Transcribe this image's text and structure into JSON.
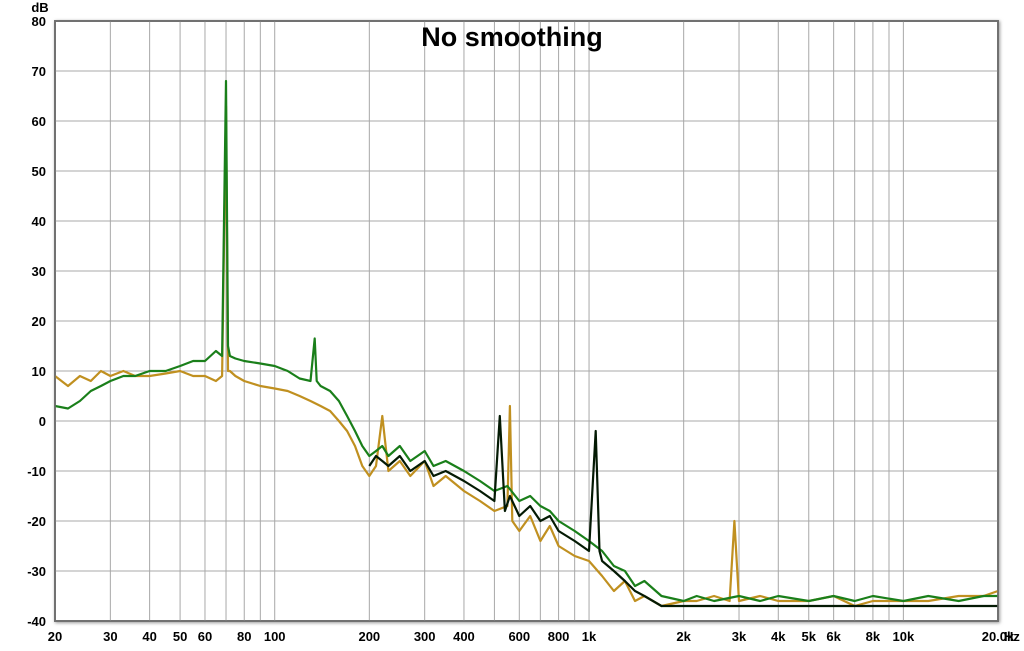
{
  "chart_data": {
    "type": "line",
    "title": "No smoothing",
    "y_unit": "dB",
    "x_unit": "Hz",
    "x_scale": "log",
    "xlim": [
      20,
      20000
    ],
    "ylim": [
      -40,
      80
    ],
    "grid": true,
    "y_ticks": [
      80,
      70,
      60,
      50,
      40,
      30,
      20,
      10,
      0,
      -10,
      -20,
      -30,
      -40
    ],
    "x_ticks": [
      {
        "v": 20,
        "label": "20"
      },
      {
        "v": 30,
        "label": "30"
      },
      {
        "v": 40,
        "label": "40"
      },
      {
        "v": 50,
        "label": "50"
      },
      {
        "v": 60,
        "label": "60"
      },
      {
        "v": 80,
        "label": "80"
      },
      {
        "v": 100,
        "label": "100"
      },
      {
        "v": 200,
        "label": "200"
      },
      {
        "v": 300,
        "label": "300"
      },
      {
        "v": 400,
        "label": "400"
      },
      {
        "v": 600,
        "label": "600"
      },
      {
        "v": 800,
        "label": "800"
      },
      {
        "v": 1000,
        "label": "1k"
      },
      {
        "v": 2000,
        "label": "2k"
      },
      {
        "v": 3000,
        "label": "3k"
      },
      {
        "v": 4000,
        "label": "4k"
      },
      {
        "v": 5000,
        "label": "5k"
      },
      {
        "v": 6000,
        "label": "6k"
      },
      {
        "v": 8000,
        "label": "8k"
      },
      {
        "v": 10000,
        "label": "10k"
      },
      {
        "v": 20000,
        "label": "20.0k"
      }
    ],
    "series": [
      {
        "color": "#c09020",
        "points": [
          [
            20,
            9
          ],
          [
            22,
            7
          ],
          [
            24,
            9
          ],
          [
            26,
            8
          ],
          [
            28,
            10
          ],
          [
            30,
            9
          ],
          [
            33,
            10
          ],
          [
            36,
            9
          ],
          [
            40,
            9
          ],
          [
            45,
            9.5
          ],
          [
            50,
            10
          ],
          [
            55,
            9
          ],
          [
            60,
            9
          ],
          [
            65,
            8
          ],
          [
            68,
            9
          ],
          [
            70,
            63
          ],
          [
            71,
            10
          ],
          [
            72,
            10
          ],
          [
            75,
            9
          ],
          [
            80,
            8
          ],
          [
            90,
            7
          ],
          [
            100,
            6.5
          ],
          [
            110,
            6
          ],
          [
            120,
            5
          ],
          [
            130,
            4
          ],
          [
            140,
            3
          ],
          [
            150,
            2
          ],
          [
            160,
            0
          ],
          [
            170,
            -2
          ],
          [
            180,
            -5
          ],
          [
            190,
            -9
          ],
          [
            200,
            -11
          ],
          [
            210,
            -9
          ],
          [
            220,
            1
          ],
          [
            230,
            -10
          ],
          [
            250,
            -8
          ],
          [
            270,
            -11
          ],
          [
            300,
            -8
          ],
          [
            320,
            -13
          ],
          [
            350,
            -11
          ],
          [
            400,
            -14
          ],
          [
            450,
            -16
          ],
          [
            500,
            -18
          ],
          [
            550,
            -17
          ],
          [
            560,
            3
          ],
          [
            570,
            -20
          ],
          [
            600,
            -22
          ],
          [
            650,
            -19
          ],
          [
            700,
            -24
          ],
          [
            750,
            -21
          ],
          [
            800,
            -25
          ],
          [
            900,
            -27
          ],
          [
            1000,
            -28
          ],
          [
            1100,
            -31
          ],
          [
            1200,
            -34
          ],
          [
            1300,
            -32
          ],
          [
            1400,
            -36
          ],
          [
            1500,
            -35
          ],
          [
            1700,
            -37
          ],
          [
            2000,
            -36
          ],
          [
            2200,
            -36
          ],
          [
            2500,
            -35
          ],
          [
            2800,
            -36
          ],
          [
            2900,
            -20
          ],
          [
            3000,
            -36
          ],
          [
            3500,
            -35
          ],
          [
            4000,
            -36
          ],
          [
            5000,
            -36
          ],
          [
            6000,
            -35
          ],
          [
            7000,
            -37
          ],
          [
            8000,
            -36
          ],
          [
            10000,
            -36
          ],
          [
            12000,
            -36
          ],
          [
            15000,
            -35
          ],
          [
            18000,
            -35
          ],
          [
            20000,
            -34
          ]
        ]
      },
      {
        "color": "#1a7f1a",
        "points": [
          [
            20,
            3
          ],
          [
            22,
            2.5
          ],
          [
            24,
            4
          ],
          [
            26,
            6
          ],
          [
            28,
            7
          ],
          [
            30,
            8
          ],
          [
            33,
            9
          ],
          [
            36,
            9
          ],
          [
            40,
            10
          ],
          [
            45,
            10
          ],
          [
            50,
            11
          ],
          [
            55,
            12
          ],
          [
            60,
            12
          ],
          [
            65,
            14
          ],
          [
            68,
            13
          ],
          [
            70,
            68
          ],
          [
            71,
            15
          ],
          [
            72,
            13
          ],
          [
            75,
            12.5
          ],
          [
            80,
            12
          ],
          [
            90,
            11.5
          ],
          [
            100,
            11
          ],
          [
            110,
            10
          ],
          [
            120,
            8.5
          ],
          [
            130,
            8
          ],
          [
            134,
            16.5
          ],
          [
            136,
            8
          ],
          [
            140,
            7
          ],
          [
            150,
            6
          ],
          [
            160,
            4
          ],
          [
            170,
            1
          ],
          [
            180,
            -2
          ],
          [
            190,
            -5
          ],
          [
            200,
            -7
          ],
          [
            210,
            -6
          ],
          [
            220,
            -5
          ],
          [
            230,
            -7
          ],
          [
            250,
            -5
          ],
          [
            270,
            -8
          ],
          [
            300,
            -6
          ],
          [
            320,
            -9
          ],
          [
            350,
            -8
          ],
          [
            400,
            -10
          ],
          [
            450,
            -12
          ],
          [
            500,
            -14
          ],
          [
            550,
            -13
          ],
          [
            600,
            -16
          ],
          [
            650,
            -15
          ],
          [
            700,
            -17
          ],
          [
            750,
            -18
          ],
          [
            800,
            -20
          ],
          [
            900,
            -22
          ],
          [
            1000,
            -24
          ],
          [
            1100,
            -26
          ],
          [
            1200,
            -29
          ],
          [
            1300,
            -30
          ],
          [
            1400,
            -33
          ],
          [
            1500,
            -32
          ],
          [
            1700,
            -35
          ],
          [
            2000,
            -36
          ],
          [
            2200,
            -35
          ],
          [
            2500,
            -36
          ],
          [
            3000,
            -35
          ],
          [
            3500,
            -36
          ],
          [
            4000,
            -35
          ],
          [
            5000,
            -36
          ],
          [
            6000,
            -35
          ],
          [
            7000,
            -36
          ],
          [
            8000,
            -35
          ],
          [
            10000,
            -36
          ],
          [
            12000,
            -35
          ],
          [
            15000,
            -36
          ],
          [
            18000,
            -35
          ],
          [
            20000,
            -35
          ]
        ]
      },
      {
        "color": "#041a04",
        "points": [
          [
            200,
            -9
          ],
          [
            210,
            -7
          ],
          [
            220,
            -8
          ],
          [
            230,
            -9
          ],
          [
            250,
            -7
          ],
          [
            270,
            -10
          ],
          [
            300,
            -8
          ],
          [
            320,
            -11
          ],
          [
            350,
            -10
          ],
          [
            400,
            -12
          ],
          [
            450,
            -14
          ],
          [
            500,
            -16
          ],
          [
            520,
            1
          ],
          [
            540,
            -18
          ],
          [
            560,
            -15
          ],
          [
            600,
            -19
          ],
          [
            650,
            -17
          ],
          [
            700,
            -20
          ],
          [
            750,
            -19
          ],
          [
            800,
            -22
          ],
          [
            900,
            -24
          ],
          [
            1000,
            -26
          ],
          [
            1050,
            -2
          ],
          [
            1080,
            -26
          ],
          [
            1100,
            -28
          ],
          [
            1200,
            -30
          ],
          [
            1300,
            -32
          ],
          [
            1400,
            -34
          ],
          [
            1500,
            -35
          ],
          [
            1700,
            -37
          ],
          [
            2000,
            -37
          ],
          [
            2500,
            -37
          ],
          [
            3000,
            -37
          ],
          [
            3500,
            -37
          ],
          [
            4000,
            -37
          ],
          [
            5000,
            -37
          ],
          [
            6000,
            -37
          ],
          [
            7000,
            -37
          ],
          [
            8000,
            -37
          ],
          [
            10000,
            -37
          ],
          [
            12000,
            -37
          ],
          [
            15000,
            -37
          ],
          [
            18000,
            -37
          ],
          [
            20000,
            -37
          ]
        ]
      }
    ]
  }
}
